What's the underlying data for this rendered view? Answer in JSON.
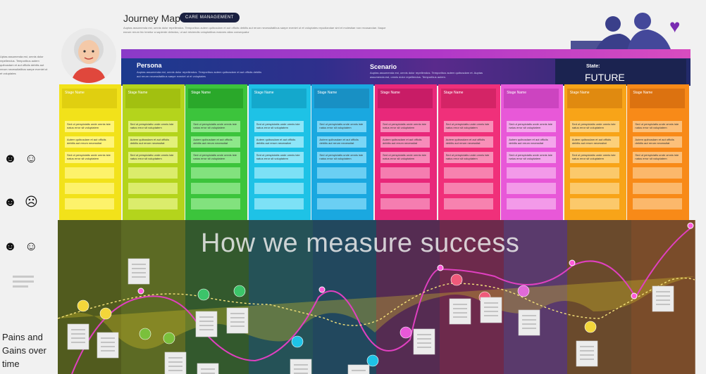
{
  "header": {
    "title": "Journey Map",
    "badge": "CARE MANAGEMENT",
    "copy": "Auptas assumenda est, omnis dolor repellendus. Temporibus autem quibusdam et aut officiis debitis aut rerum necessitatibus saepe eveniet ut et voluptates repudiandae sint et molestiae non recusandae. Itaque earum rerum hic tenetur a sapiente delectus, ut aut reiciendis voluptatibus maiores alias consequatur",
    "left_copy": "Uptas assumenda est, omnis dolor repellendus. Temporibus autem quibusdam et aut officiis debitis aut rerum necessitatibus saepe eveniet ut et voluptates"
  },
  "banner": {
    "persona_label": "Persona",
    "persona_text": "Auptas assumenda est, omnis dolor repellendus. Temporibus autem quibusdam et aut officiis debitis aut rerum necessitatibus saepe eveniet ut et voluptates",
    "scenario_label": "Scenario",
    "scenario_text": "Auptas assumenda est, omnis dolor repellendus. Temporibus autem quibusdam et. Auptas assumenda est, omnis dolor repellendus. Temporibus autem.",
    "state_label": "State:",
    "state_value": "FUTURE"
  },
  "colors": {
    "stages": [
      "#f2e21a",
      "#b4d41c",
      "#3cc43c",
      "#1ec2e6",
      "#1aa8e0",
      "#e8287a",
      "#f0307a",
      "#e858d8",
      "#f8a418",
      "#f88a18"
    ],
    "stage_headers": [
      "#e0cf10",
      "#a2c010",
      "#2aa82a",
      "#14a8cc",
      "#1890c4",
      "#c81c66",
      "#d42466",
      "#cc44c0",
      "#e08a10",
      "#dc7210"
    ],
    "notes": [
      "#fff57a",
      "#e2f07a",
      "#8ee88a",
      "#8ee6f8",
      "#7ad6f6",
      "#f78cba",
      "#f890b8",
      "#f4a6ec",
      "#fcd07a",
      "#fcc07a"
    ],
    "lower_bg": [
      "#515b1e",
      "#5c6a24",
      "#33592d",
      "#255257",
      "#22485e",
      "#552c52",
      "#6d2a4c",
      "#5a3a6c",
      "#6a4a2c",
      "#7a4c2a"
    ]
  },
  "stages": [
    {
      "name": "Stage Name",
      "notes": [
        "Sed ut perspiciatis unde omnis iste natus error sit voluptatem",
        "Autem quibusdam et aut officiis debitis aut rerum necessitat",
        "Sed ut perspiciatis unde omnis iste natus error sit voluptatem"
      ]
    },
    {
      "name": "Stage Name",
      "notes": [
        "Sed ut perspiciatis unde omnis iste natus error sit voluptatem",
        "Autem quibusdam et aut officiis debitis aut rerum necessitat",
        "Sed ut perspiciatis unde omnis iste natus error sit voluptatem"
      ]
    },
    {
      "name": "Stage Name",
      "notes": [
        "Sed ut perspiciatis unde omnis iste natus error sit voluptatem",
        "Autem quibusdam et aut officiis debitis aut rerum necessitat",
        "Sed ut perspiciatis unde omnis iste natus error sit voluptatem"
      ]
    },
    {
      "name": "Stage Name",
      "notes": [
        "Sed ut perspiciatis unde omnis iste natus error sit voluptatem",
        "Autem quibusdam et aut officiis debitis aut rerum necessitat",
        "Sed ut perspiciatis unde omnis iste natus error sit voluptatem"
      ]
    },
    {
      "name": "Stage Name",
      "notes": [
        "Sed ut perspiciatis unde omnis iste natus error sit voluptatem",
        "Autem quibusdam et aut officiis debitis aut rerum necessitat",
        "Sed ut perspiciatis unde omnis iste natus error sit voluptatem"
      ]
    },
    {
      "name": "Stage Name",
      "notes": [
        "Sed ut perspiciatis unde omnis iste natus error sit voluptatem",
        "Autem quibusdam et aut officiis debitis aut rerum necessitat",
        "Sed ut perspiciatis unde omnis iste natus error sit voluptatem"
      ]
    },
    {
      "name": "Stage Name",
      "notes": [
        "Sed ut perspiciatis unde omnis iste natus error sit voluptatem",
        "Autem quibusdam et aut officiis debitis aut rerum necessitat",
        "Sed ut perspiciatis unde omnis iste natus error sit voluptatem"
      ]
    },
    {
      "name": "Stage Name",
      "notes": [
        "Sed ut perspiciatis unde omnis iste natus error sit voluptatem",
        "Autem quibusdam et aut officiis debitis aut rerum necessitat",
        "Sed ut perspiciatis unde omnis iste natus error sit voluptatem"
      ]
    },
    {
      "name": "Stage Name",
      "notes": [
        "Sed ut perspiciatis unde omnis iste natus error sit voluptatem",
        "Autem quibusdam et aut officiis debitis aut rerum necessitat",
        "Sed ut perspiciatis unde omnis iste natus error sit voluptatem"
      ]
    },
    {
      "name": "Stage Name",
      "notes": [
        "Sed ut perspiciatis unde omnis iste natus error sit voluptatem",
        "Autem quibusdam et aut officiis debitis aut rerum necessitat",
        "Sed ut perspiciatis unde omnis iste natus error sit voluptatem"
      ]
    }
  ],
  "lower": {
    "headline": "How we measure success",
    "pains_gains": "Pains and Gains over time"
  }
}
